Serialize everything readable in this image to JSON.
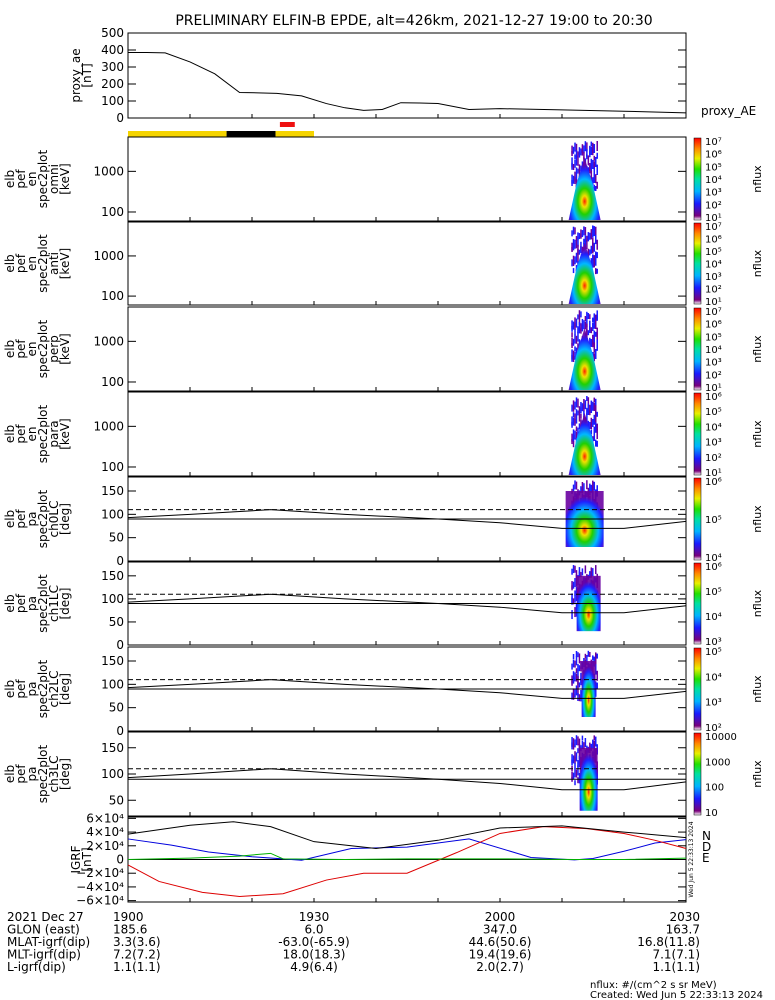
{
  "title": "PRELIMINARY ELFIN-B EPDE, alt=426km, 2021-12-27 19:00 to 20:30",
  "colors": {
    "axis": "#000000",
    "yellow": "#f5d400",
    "black": "#000000",
    "red": "#ee1111",
    "n_color": "#0000dd",
    "d_color": "#dd0000",
    "e_color": "#00b000"
  },
  "time_bar": {
    "segments": [
      {
        "color": "yellow",
        "start": 1140,
        "end": 1155.9
      },
      {
        "color": "black",
        "start": 1155.9,
        "end": 1163.8
      },
      {
        "color": "yellow",
        "start": 1163.8,
        "end": 1170
      }
    ],
    "highlight": {
      "color": "red",
      "start": 1164.5,
      "end": 1166.9
    }
  },
  "panels": [
    {
      "id": "proxy_ae",
      "label_lines": [
        "proxy_ae",
        "[nT]"
      ],
      "right_label": "proxy_AE",
      "ticks": [
        "0",
        "100",
        "200",
        "300",
        "400",
        "500"
      ]
    },
    {
      "id": "en-omni",
      "label_lines": [
        "elb",
        "pef",
        "en",
        "spec2plot",
        "omni",
        "[keV]"
      ],
      "ticks": [
        "100",
        "1000"
      ],
      "colorbar_ticks": [
        "10¹",
        "10²",
        "10³",
        "10⁴",
        "10⁵",
        "10⁶",
        "10⁷"
      ],
      "colorbar_label": "nflux"
    },
    {
      "id": "en-anti",
      "label_lines": [
        "elb",
        "pef",
        "en",
        "spec2plot",
        "anti",
        "[keV]"
      ],
      "ticks": [
        "100",
        "1000"
      ],
      "colorbar_ticks": [
        "10¹",
        "10²",
        "10³",
        "10⁴",
        "10⁵",
        "10⁶",
        "10⁷"
      ],
      "colorbar_label": "nflux"
    },
    {
      "id": "en-perp",
      "label_lines": [
        "elb",
        "pef",
        "en",
        "spec2plot",
        "perp",
        "[keV]"
      ],
      "ticks": [
        "100",
        "1000"
      ],
      "colorbar_ticks": [
        "10¹",
        "10²",
        "10³",
        "10⁴",
        "10⁵",
        "10⁶",
        "10⁷"
      ],
      "colorbar_label": "nflux"
    },
    {
      "id": "en-para",
      "label_lines": [
        "elb",
        "pef",
        "en",
        "spec2plot",
        "para",
        "[keV]"
      ],
      "ticks": [
        "100",
        "1000"
      ],
      "colorbar_ticks": [
        "10¹",
        "10²",
        "10³",
        "10⁴",
        "10⁵",
        "10⁶"
      ],
      "colorbar_label": "nflux"
    },
    {
      "id": "ch0",
      "label_lines": [
        "elb",
        "pef",
        "pa",
        "spec2plot",
        "ch0LC",
        "[deg]"
      ],
      "ticks": [
        "0",
        "50",
        "100",
        "150"
      ],
      "colorbar_ticks": [
        "10⁴",
        "10⁵",
        "10⁶"
      ],
      "colorbar_label": "nflux"
    },
    {
      "id": "ch1",
      "label_lines": [
        "elb",
        "pef",
        "pa",
        "spec2plot",
        "ch1LC",
        "[deg]"
      ],
      "ticks": [
        "0",
        "50",
        "100",
        "150"
      ],
      "colorbar_ticks": [
        "10³",
        "10⁴",
        "10⁵",
        "10⁶"
      ],
      "colorbar_label": "nflux"
    },
    {
      "id": "ch2",
      "label_lines": [
        "elb",
        "pef",
        "pa",
        "spec2plot",
        "ch2LC",
        "[deg]"
      ],
      "ticks": [
        "0",
        "50",
        "100",
        "150"
      ],
      "colorbar_ticks": [
        "10²",
        "10³",
        "10⁴",
        "10⁵"
      ],
      "colorbar_label": "nflux"
    },
    {
      "id": "ch3",
      "label_lines": [
        "elb",
        "pef",
        "pa",
        "spec2plot",
        "ch3LC",
        "[deg]"
      ],
      "ticks": [
        "50",
        "100",
        "150"
      ],
      "colorbar_ticks": [
        "10",
        "100",
        "1000",
        "10000"
      ],
      "colorbar_label": "nflux"
    },
    {
      "id": "igrf",
      "label_lines": [
        "IGRF",
        "[nT]"
      ],
      "ticks": [
        "−6×10⁴",
        "−4×10⁴",
        "−2×10⁴",
        "0",
        "2×10⁴",
        "4×10⁴",
        "6×10⁴"
      ],
      "legend": [
        "N",
        "D",
        "E"
      ],
      "side_note": "Wed Jun  5 22:33:13 2024"
    }
  ],
  "chart_data": {
    "type": "line",
    "x_unit": "minutes since 00:00 UT, 2021-12-27",
    "xlim": [
      1140,
      1230
    ],
    "series": [
      {
        "name": "proxy_AE",
        "x": [
          1140,
          1143,
          1146,
          1150,
          1154,
          1158,
          1161,
          1164,
          1168,
          1172,
          1175,
          1178,
          1181,
          1184,
          1187,
          1190,
          1195,
          1200,
          1210,
          1220,
          1230
        ],
        "values": [
          385,
          385,
          383,
          330,
          260,
          150,
          148,
          145,
          130,
          85,
          60,
          45,
          50,
          90,
          88,
          85,
          50,
          55,
          48,
          40,
          30
        ],
        "ylim": [
          0,
          500
        ]
      },
      {
        "name": "N",
        "x": [
          1140,
          1147,
          1153,
          1160,
          1168,
          1176,
          1185,
          1195,
          1205,
          1212,
          1215,
          1220,
          1225,
          1230
        ],
        "values": [
          30000,
          21000,
          11000,
          4000,
          -1000,
          16000,
          18000,
          30000,
          3000,
          -500,
          1500,
          12000,
          24000,
          29000
        ],
        "ylim": [
          -60000,
          60000
        ]
      },
      {
        "name": "D",
        "x": [
          1140,
          1145,
          1152,
          1158,
          1165,
          1172,
          1178,
          1185,
          1193,
          1200,
          1207,
          1214,
          1220,
          1225,
          1230
        ],
        "values": [
          -8000,
          -32000,
          -48000,
          -54000,
          -50000,
          -30000,
          -20000,
          -20000,
          10000,
          38000,
          48000,
          45000,
          38000,
          28000,
          16000
        ],
        "ylim": [
          -60000,
          60000
        ]
      },
      {
        "name": "E",
        "x": [
          1140,
          1150,
          1158,
          1163,
          1165,
          1175,
          1185,
          1200,
          1212,
          1220,
          1230
        ],
        "values": [
          0,
          2000,
          5000,
          9000,
          1000,
          0,
          1000,
          1000,
          0,
          0,
          2000
        ],
        "ylim": [
          -60000,
          60000
        ]
      },
      {
        "x": [
          1140,
          1150,
          1157,
          1163,
          1170,
          1180,
          1190,
          1200,
          1210,
          1220,
          1230
        ],
        "values": [
          37000,
          50000,
          55000,
          48000,
          26000,
          16000,
          28000,
          46000,
          49000,
          40000,
          32000
        ],
        "ylim": [
          -60000,
          60000
        ]
      }
    ],
    "lc_curve": {
      "x": [
        1140,
        1150,
        1163,
        1175,
        1190,
        1200,
        1210,
        1220,
        1230
      ],
      "values": [
        93,
        100,
        110,
        100,
        90,
        82,
        70,
        70,
        85
      ]
    },
    "dashed_level_deg": 110,
    "spectrogram_window": [
      1211.5,
      1215.8
    ],
    "orbit_table": {
      "row_labels": [
        "2021 Dec 27",
        "GLON (east)",
        "MLAT-igrf(dip)",
        "MLT-igrf(dip)",
        "L-igrf(dip)"
      ],
      "columns": [
        {
          "x": 1140,
          "values": [
            "1900",
            "185.6",
            "3.3(3.6)",
            "7.2(7.2)",
            "1.1(1.1)"
          ]
        },
        {
          "x": 1170,
          "values": [
            "1930",
            "6.0",
            "-63.0(-65.9)",
            "18.0(18.3)",
            "4.9(6.4)"
          ]
        },
        {
          "x": 1200,
          "values": [
            "2000",
            "347.0",
            "44.6(50.6)",
            "19.4(19.6)",
            "2.0(2.7)"
          ]
        },
        {
          "x": 1230,
          "values": [
            "2030",
            "163.7",
            "16.8(11.8)",
            "7.1(7.1)",
            "1.1(1.1)"
          ]
        }
      ]
    }
  },
  "footer": {
    "units": "nflux: #/(cm^2 s sr MeV)",
    "created": "Created: Wed Jun  5 22:33:13 2024"
  }
}
